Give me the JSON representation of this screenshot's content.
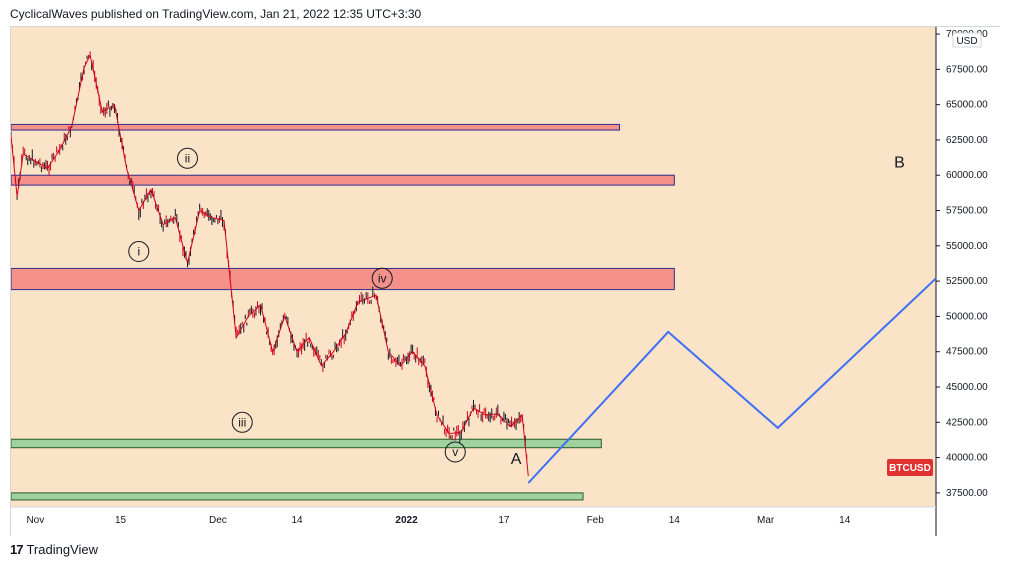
{
  "header": {
    "text": "CyclicalWaves published on TradingView.com, Jan 21, 2022 12:35 UTC+3:30"
  },
  "footer": {
    "logo": "17",
    "brand": "TradingView"
  },
  "colors": {
    "background": "#fbe3c8",
    "candle": "#d0021b",
    "candle_alt": "#131722",
    "projection": "#3d6ff5",
    "resistance_fill": "#f3918a",
    "resistance_stroke": "#2a2f8f",
    "support_fill": "#9fd29f",
    "support_stroke": "#2a5b2a",
    "badge": "#e03030"
  },
  "chart_data": {
    "type": "line",
    "symbol": "BTCUSD",
    "currency": "USD",
    "yaxis": {
      "ticks": [
        "37500.00",
        "40000.00",
        "42500.00",
        "45000.00",
        "47500.00",
        "50000.00",
        "52500.00",
        "55000.00",
        "57500.00",
        "60000.00",
        "62500.00",
        "65000.00",
        "67500.00",
        "70000.00"
      ],
      "range": [
        36500,
        70500
      ]
    },
    "xaxis": {
      "ticks": [
        "Nov",
        "15",
        "Dec",
        "14",
        "2022",
        "17",
        "Feb",
        "14",
        "Mar",
        "14"
      ],
      "tick_dates": [
        "2021-11-01",
        "2021-11-15",
        "2021-12-01",
        "2021-12-14",
        "2022-01-01",
        "2022-01-17",
        "2022-02-01",
        "2022-02-14",
        "2022-03-01",
        "2022-03-14"
      ],
      "range": [
        "2021-10-28",
        "2022-03-29"
      ]
    },
    "price": [
      [
        "2021-10-28",
        62800
      ],
      [
        "2021-10-29",
        58500
      ],
      [
        "2021-10-30",
        61500
      ],
      [
        "2021-11-01",
        61000
      ],
      [
        "2021-11-03",
        60500
      ],
      [
        "2021-11-05",
        61800
      ],
      [
        "2021-11-07",
        63500
      ],
      [
        "2021-11-09",
        67600
      ],
      [
        "2021-11-10",
        68500
      ],
      [
        "2021-11-12",
        64500
      ],
      [
        "2021-11-14",
        65000
      ],
      [
        "2021-11-16",
        60500
      ],
      [
        "2021-11-18",
        57500
      ],
      [
        "2021-11-20",
        59000
      ],
      [
        "2021-11-22",
        56500
      ],
      [
        "2021-11-24",
        57000
      ],
      [
        "2021-11-26",
        53800
      ],
      [
        "2021-11-28",
        57500
      ],
      [
        "2021-11-30",
        57000
      ],
      [
        "2021-12-02",
        56800
      ],
      [
        "2021-12-04",
        48500
      ],
      [
        "2021-12-06",
        50000
      ],
      [
        "2021-12-08",
        50800
      ],
      [
        "2021-12-10",
        47500
      ],
      [
        "2021-12-12",
        50000
      ],
      [
        "2021-12-14",
        47500
      ],
      [
        "2021-12-16",
        48500
      ],
      [
        "2021-12-18",
        46500
      ],
      [
        "2021-12-20",
        47500
      ],
      [
        "2021-12-22",
        48800
      ],
      [
        "2021-12-24",
        51000
      ],
      [
        "2021-12-27",
        51500
      ],
      [
        "2021-12-29",
        47500
      ],
      [
        "2021-12-31",
        46500
      ],
      [
        "2022-01-02",
        47500
      ],
      [
        "2022-01-04",
        46500
      ],
      [
        "2022-01-06",
        43000
      ],
      [
        "2022-01-08",
        41700
      ],
      [
        "2022-01-10",
        41800
      ],
      [
        "2022-01-12",
        43500
      ],
      [
        "2022-01-14",
        43000
      ],
      [
        "2022-01-16",
        43100
      ],
      [
        "2022-01-18",
        42200
      ],
      [
        "2022-01-20",
        43000
      ],
      [
        "2022-01-21",
        38700
      ]
    ],
    "projection": [
      [
        "2022-01-21",
        38200
      ],
      [
        "2022-02-13",
        48900
      ],
      [
        "2022-03-03",
        42100
      ],
      [
        "2022-03-29",
        52700
      ]
    ],
    "zones": [
      {
        "kind": "resistance",
        "start": "2021-10-28",
        "end": "2022-02-05",
        "low": 63200,
        "high": 63600
      },
      {
        "kind": "resistance",
        "start": "2021-10-28",
        "end": "2022-02-14",
        "low": 59300,
        "high": 60000
      },
      {
        "kind": "resistance",
        "start": "2021-10-28",
        "end": "2022-02-14",
        "low": 51900,
        "high": 53400
      },
      {
        "kind": "support",
        "start": "2021-10-28",
        "end": "2022-02-02",
        "low": 40700,
        "high": 41300
      },
      {
        "kind": "support",
        "start": "2021-10-28",
        "end": "2022-01-30",
        "low": 37000,
        "high": 37500
      }
    ],
    "annotations": [
      {
        "label": "i",
        "date": "2021-11-18",
        "price": 54600,
        "circled": true
      },
      {
        "label": "ii",
        "date": "2021-11-26",
        "price": 61200,
        "circled": true
      },
      {
        "label": "iii",
        "date": "2021-12-05",
        "price": 42500,
        "circled": true
      },
      {
        "label": "iv",
        "date": "2021-12-28",
        "price": 52700,
        "circled": true
      },
      {
        "label": "v",
        "date": "2022-01-09",
        "price": 40400,
        "circled": true
      },
      {
        "label": "A",
        "date": "2022-01-19",
        "price": 39900,
        "circled": false
      },
      {
        "label": "B",
        "date": "2022-03-23",
        "price": 60900,
        "circled": false
      }
    ]
  }
}
